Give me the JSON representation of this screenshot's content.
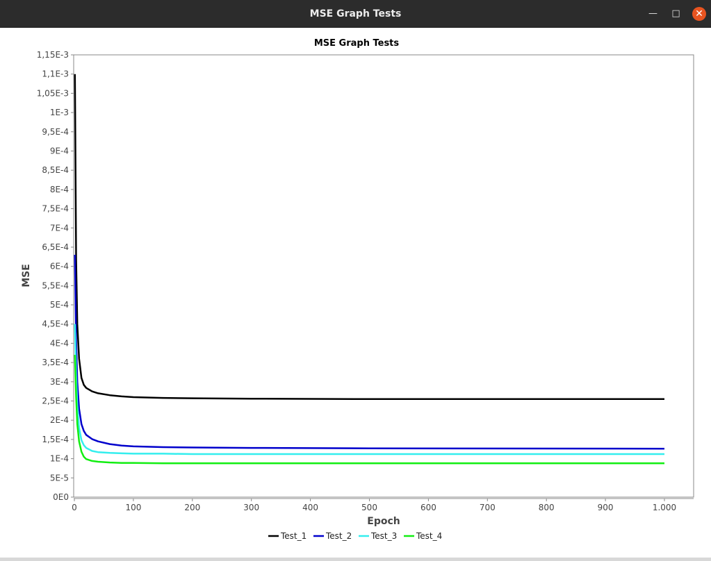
{
  "window": {
    "title": "MSE Graph Tests"
  },
  "chart_data": {
    "type": "line",
    "title": "MSE Graph Tests",
    "xlabel": "Epoch",
    "ylabel": "MSE",
    "xlim": [
      0,
      1050
    ],
    "ylim": [
      0,
      0.00115
    ],
    "x_ticks": [
      0,
      100,
      200,
      300,
      400,
      500,
      600,
      700,
      800,
      900,
      1000
    ],
    "x_tick_labels": [
      "0",
      "100",
      "200",
      "300",
      "400",
      "500",
      "600",
      "700",
      "800",
      "900",
      "1.000"
    ],
    "y_ticks": [
      0,
      5e-05,
      0.0001,
      0.00015,
      0.0002,
      0.00025,
      0.0003,
      0.00035,
      0.0004,
      0.00045,
      0.0005,
      0.00055,
      0.0006,
      0.00065,
      0.0007,
      0.00075,
      0.0008,
      0.00085,
      0.0009,
      0.00095,
      0.001,
      0.00105,
      0.0011,
      0.00115
    ],
    "y_tick_labels": [
      "0E0",
      "5E-5",
      "1E-4",
      "1,5E-4",
      "2E-4",
      "2,5E-4",
      "3E-4",
      "3,5E-4",
      "4E-4",
      "4,5E-4",
      "5E-4",
      "5,5E-4",
      "6E-4",
      "6,5E-4",
      "7E-4",
      "7,5E-4",
      "8E-4",
      "8,5E-4",
      "9E-4",
      "9,5E-4",
      "1E-3",
      "1,05E-3",
      "1,1E-3",
      "1,15E-3"
    ],
    "grid": false,
    "legend_position": "bottom",
    "series": [
      {
        "name": "Test_1",
        "color": "#000000",
        "x": [
          1,
          3,
          5,
          8,
          12,
          16,
          20,
          30,
          40,
          60,
          80,
          100,
          150,
          200,
          300,
          500,
          1000
        ],
        "y": [
          0.0011,
          0.00062,
          0.00045,
          0.00036,
          0.00031,
          0.000292,
          0.000284,
          0.000275,
          0.00027,
          0.000265,
          0.000262,
          0.00026,
          0.000258,
          0.000257,
          0.000256,
          0.000255,
          0.000255
        ]
      },
      {
        "name": "Test_2",
        "color": "#0000cc",
        "x": [
          1,
          3,
          5,
          8,
          12,
          16,
          20,
          30,
          40,
          60,
          80,
          100,
          150,
          200,
          300,
          500,
          1000
        ],
        "y": [
          0.00063,
          0.00041,
          0.0003,
          0.00023,
          0.00019,
          0.000172,
          0.000162,
          0.000151,
          0.000145,
          0.000138,
          0.000134,
          0.000132,
          0.00013,
          0.000129,
          0.000128,
          0.000127,
          0.000126
        ]
      },
      {
        "name": "Test_3",
        "color": "#33eeee",
        "x": [
          1,
          3,
          5,
          8,
          12,
          16,
          20,
          30,
          40,
          60,
          80,
          100,
          150,
          200,
          300,
          500,
          1000
        ],
        "y": [
          0.00045,
          0.00032,
          0.00024,
          0.00018,
          0.000148,
          0.000135,
          0.000128,
          0.00012,
          0.000117,
          0.000115,
          0.000114,
          0.000113,
          0.000113,
          0.000112,
          0.000112,
          0.000112,
          0.000112
        ]
      },
      {
        "name": "Test_4",
        "color": "#11ee11",
        "x": [
          1,
          3,
          5,
          8,
          12,
          16,
          20,
          30,
          40,
          60,
          80,
          100,
          150,
          200,
          300,
          500,
          1000
        ],
        "y": [
          0.00037,
          0.00026,
          0.00019,
          0.000145,
          0.000118,
          0.000105,
          9.9e-05,
          9.4e-05,
          9.2e-05,
          9e-05,
          8.9e-05,
          8.9e-05,
          8.8e-05,
          8.8e-05,
          8.8e-05,
          8.8e-05,
          8.8e-05
        ]
      }
    ]
  }
}
